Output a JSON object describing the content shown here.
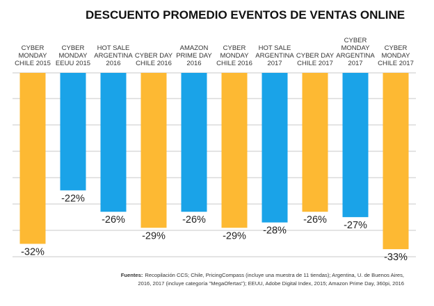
{
  "chart_data": {
    "type": "bar",
    "title": "DESCUENTO PROMEDIO EVENTOS DE VENTAS ONLINE",
    "categories": [
      "CYBER MONDAY CHILE 2015",
      "CYBER MONDAY EEUU 2015",
      "HOT SALE ARGENTINA 2016",
      "CYBER DAY CHILE 2016",
      "AMAZON PRIME DAY 2016",
      "CYBER MONDAY CHILE 2016",
      "HOT SALE ARGENTINA 2017",
      "CYBER DAY CHILE 2017",
      "CYBER MONDAY ARGENTINA 2017",
      "CYBER MONDAY CHILE 2017"
    ],
    "category_lines": [
      [
        "CYBER",
        "MONDAY",
        "CHILE 2015"
      ],
      [
        "CYBER",
        "MONDAY",
        "EEUU 2015"
      ],
      [
        "HOT SALE",
        "ARGENTINA",
        "2016"
      ],
      [
        "CYBER DAY",
        "CHILE 2016"
      ],
      [
        "AMAZON",
        "PRIME DAY",
        "2016"
      ],
      [
        "CYBER",
        "MONDAY",
        "CHILE 2016"
      ],
      [
        "HOT SALE",
        "ARGENTINA",
        "2017"
      ],
      [
        "CYBER DAY",
        "CHILE 2017"
      ],
      [
        "CYBER",
        "MONDAY",
        "ARGENTINA",
        "2017"
      ],
      [
        "CYBER",
        "MONDAY",
        "CHILE 2017"
      ]
    ],
    "values": [
      -32,
      -22,
      -26,
      -29,
      -26,
      -29,
      -28,
      -26,
      -27,
      -33
    ],
    "value_labels": [
      "-32%",
      "-22%",
      "-26%",
      "-29%",
      "-26%",
      "-29%",
      "-28%",
      "-26%",
      "-27%",
      "-33%"
    ],
    "ylim": [
      -35,
      0
    ],
    "grid": true,
    "colors": {
      "orange": "#FDB933",
      "blue": "#1AA3E8",
      "grid": "#C8C8C8",
      "bar_map": [
        "orange",
        "blue",
        "blue",
        "orange",
        "blue",
        "orange",
        "blue",
        "orange",
        "blue",
        "orange"
      ]
    }
  },
  "footnote": {
    "label": "Fuentes:",
    "line1": "Recopilación CCS; Chile, PricingCompass (incluye una muestra de 11 tiendas); Argentina, U. de Buenos Aires,",
    "line2": "2016, 2017 (incluye categoría \"MegaOfertas\"); EEUU, Adobe Digital Index, 2015; Amazon Prime Day, 360pi, 2016"
  }
}
